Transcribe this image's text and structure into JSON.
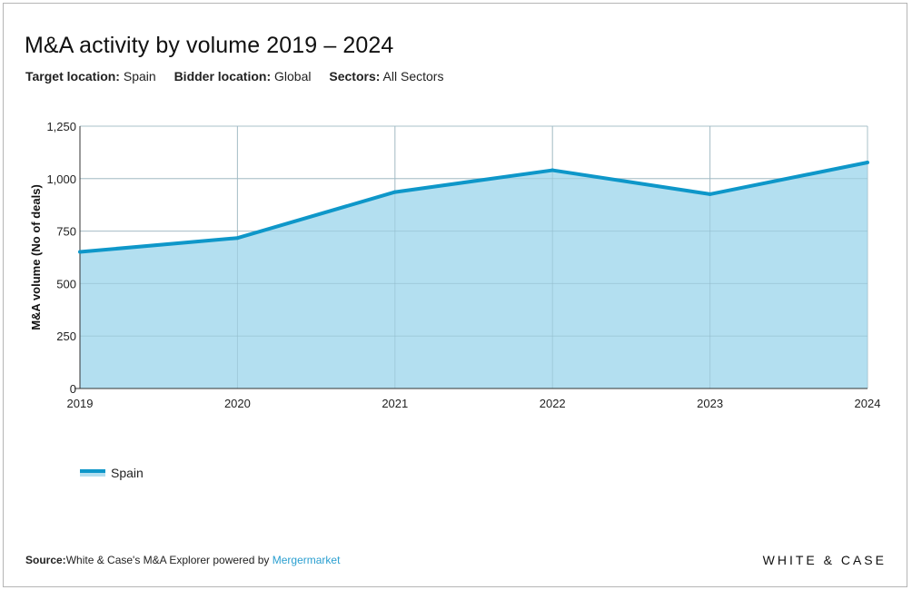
{
  "header": {
    "title": "M&A activity by volume 2019 – 2024",
    "filters": [
      {
        "key": "Target location:",
        "value": "Spain"
      },
      {
        "key": "Bidder location:",
        "value": "Global"
      },
      {
        "key": "Sectors:",
        "value": "All Sectors"
      }
    ]
  },
  "chart_data": {
    "type": "area",
    "title": "M&A activity by volume 2019 – 2024",
    "xlabel": "",
    "ylabel": "M&A volume (No of deals)",
    "x": [
      "2019",
      "2020",
      "2021",
      "2022",
      "2023",
      "2024"
    ],
    "ylim": [
      0,
      1250
    ],
    "yticks": [
      0,
      250,
      500,
      750,
      1000,
      1250
    ],
    "ytick_labels": [
      "0",
      "250",
      "500",
      "750",
      "1,000",
      "1,250"
    ],
    "grid": true,
    "legend_position": "bottom-left",
    "series": [
      {
        "name": "Spain",
        "values": [
          651,
          717,
          936,
          1040,
          926,
          1077
        ],
        "line_color": "#0e97c9",
        "fill_color": "#b3dff0"
      }
    ]
  },
  "legend": {
    "label": "Spain"
  },
  "footer": {
    "source_label": "Source:",
    "source_text": "White & Case's M&A Explorer powered by ",
    "source_link": "Mergermarket",
    "brand": "WHITE & CASE"
  },
  "colors": {
    "line": "#0e97c9",
    "fill": "#b3dff0",
    "grid": "#c8c8c8",
    "link": "#2a9fd0"
  }
}
